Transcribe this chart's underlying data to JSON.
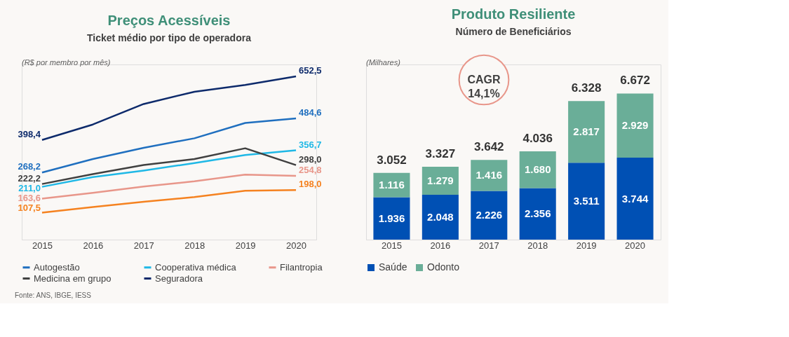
{
  "chart_data": [
    {
      "type": "line",
      "title": "Preços Acessíveis",
      "subtitle": "Ticket médio por tipo de operadora",
      "ylabel": "(R$ por membro por mês)",
      "categories": [
        "2015",
        "2016",
        "2017",
        "2018",
        "2019",
        "2020"
      ],
      "ylim": [
        0,
        700
      ],
      "tick_labels": "x",
      "grid": false,
      "legend": "bottom",
      "marker": "none",
      "line_style": "solid",
      "series": [
        {
          "name": "Autogestão",
          "color": "#1f6fbf",
          "values": [
            268.2,
            322,
            367,
            405,
            466,
            484.6
          ],
          "value_labels": [
            "268,2",
            null,
            null,
            null,
            null,
            "484,6"
          ]
        },
        {
          "name": "Cooperativa médica",
          "color": "#1fb8e6",
          "values": [
            211.0,
            250,
            276,
            306,
            338,
            356.7
          ],
          "value_labels": [
            "211,0",
            null,
            null,
            null,
            null,
            "356,7"
          ]
        },
        {
          "name": "Filantropia",
          "color": "#e8968a",
          "values": [
            163.6,
            187,
            212,
            233,
            260,
            254.8
          ],
          "value_labels": [
            "163,6",
            null,
            null,
            null,
            null,
            "254,8"
          ]
        },
        {
          "name": "Medicina em grupo",
          "color": "#404040",
          "values": [
            222.2,
            262,
            298,
            322,
            365,
            298.0
          ],
          "value_labels": [
            "222,2",
            null,
            null,
            null,
            null,
            "298,0"
          ]
        },
        {
          "name": "Seguradora",
          "color": "#0d2a6b",
          "values": [
            398.4,
            460,
            542,
            591,
            618,
            652.5
          ],
          "value_labels": [
            "398,4",
            null,
            null,
            null,
            null,
            "652,5"
          ]
        },
        {
          "color": "#f58220",
          "values": [
            107.5,
            130,
            151,
            170,
            195,
            198.0
          ],
          "value_labels": [
            "107,5",
            null,
            null,
            null,
            null,
            "198,0"
          ]
        }
      ],
      "annotations": [
        "Fonte: ANS, IBGE, IESS"
      ]
    },
    {
      "type": "bar",
      "title": "Produto Resiliente",
      "subtitle": "Número de Beneficiários",
      "ylabel": "(Milhares)",
      "categories": [
        "2015",
        "2016",
        "2017",
        "2018",
        "2019",
        "2020"
      ],
      "ylim": [
        0,
        8000
      ],
      "tick_labels": "x",
      "grid": false,
      "legend": "bottom",
      "stacked": true,
      "series": [
        {
          "name": "Saúde",
          "color": "#0050b4",
          "values": [
            1936,
            2048,
            2226,
            2356,
            3511,
            3744
          ],
          "value_labels": [
            "1.936",
            "2.048",
            "2.226",
            "2.356",
            "3.511",
            "3.744"
          ]
        },
        {
          "name": "Odonto",
          "color": "#6aae98",
          "values": [
            1116,
            1279,
            1416,
            1680,
            2817,
            2929
          ],
          "value_labels": [
            "1.116",
            "1.279",
            "1.416",
            "1.680",
            "2.817",
            "2.929"
          ]
        }
      ],
      "totals": [
        "3.052",
        "3.327",
        "3.642",
        "4.036",
        "6.328",
        "6.672"
      ],
      "annotations": [
        "CAGR 14,1%"
      ]
    }
  ]
}
